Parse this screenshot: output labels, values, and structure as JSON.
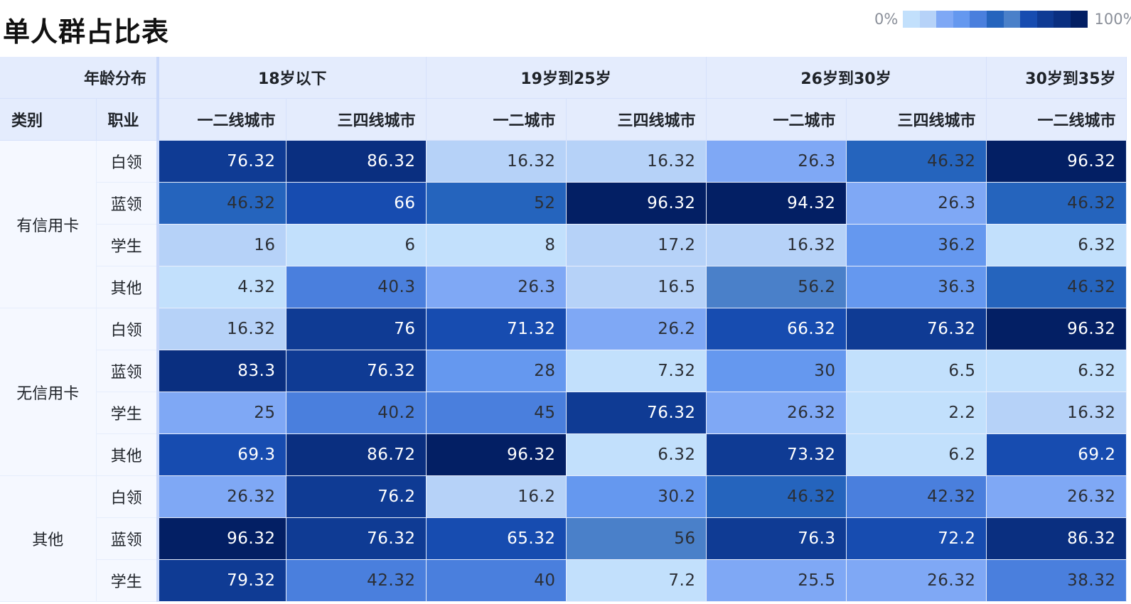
{
  "title": "单人群占比表",
  "legend": {
    "min_label": "0%",
    "max_label": "100%",
    "colors": [
      "#c2e0fc",
      "#b6d2f8",
      "#7fa8f5",
      "#6598ef",
      "#4a7fdd",
      "#2564bd",
      "#4a80c9",
      "#174cb0",
      "#0f3b94",
      "#0a2f80",
      "#031f64"
    ]
  },
  "header": {
    "age_label": "年龄分布",
    "category_label": "类别",
    "job_label": "职业",
    "age_groups": [
      "18岁以下",
      "19岁到25岁",
      "26岁到30岁",
      "30岁到35岁"
    ],
    "city_labels": [
      "一二线城市",
      "三四线城市",
      "一二城市",
      "三四线城市",
      "一二城市",
      "三四线城市",
      "一二线城市"
    ]
  },
  "chart_data": {
    "type": "heatmap",
    "title": "单人群占比表",
    "color_scale": {
      "min": 0,
      "max": 100,
      "min_label": "0%",
      "max_label": "100%"
    },
    "columns": [
      {
        "age": "18岁以下",
        "city": "一二线城市"
      },
      {
        "age": "18岁以下",
        "city": "三四线城市"
      },
      {
        "age": "19岁到25岁",
        "city": "一二城市"
      },
      {
        "age": "19岁到25岁",
        "city": "三四线城市"
      },
      {
        "age": "26岁到30岁",
        "city": "一二城市"
      },
      {
        "age": "26岁到30岁",
        "city": "三四线城市"
      },
      {
        "age": "30岁到35岁",
        "city": "一二线城市"
      }
    ],
    "groups": [
      {
        "category": "有信用卡",
        "rows": [
          {
            "job": "白领",
            "values": [
              "76.32",
              "86.32",
              "16.32",
              "16.32",
              "26.3",
              "46.32",
              "96.32"
            ]
          },
          {
            "job": "蓝领",
            "values": [
              "46.32",
              "66",
              "52",
              "96.32",
              "94.32",
              "26.3",
              "46.32"
            ]
          },
          {
            "job": "学生",
            "values": [
              "16",
              "6",
              "8",
              "17.2",
              "16.32",
              "36.2",
              "6.32"
            ]
          },
          {
            "job": "其他",
            "values": [
              "4.32",
              "40.3",
              "26.3",
              "16.5",
              "56.2",
              "36.3",
              "46.32"
            ]
          }
        ]
      },
      {
        "category": "无信用卡",
        "rows": [
          {
            "job": "白领",
            "values": [
              "16.32",
              "76",
              "71.32",
              "26.2",
              "66.32",
              "76.32",
              "96.32"
            ]
          },
          {
            "job": "蓝领",
            "values": [
              "83.3",
              "76.32",
              "28",
              "7.32",
              "30",
              "6.5",
              "6.32"
            ]
          },
          {
            "job": "学生",
            "values": [
              "25",
              "40.2",
              "45",
              "76.32",
              "26.32",
              "2.2",
              "16.32"
            ]
          },
          {
            "job": "其他",
            "values": [
              "69.3",
              "86.72",
              "96.32",
              "6.32",
              "73.32",
              "6.2",
              "69.2"
            ]
          }
        ]
      },
      {
        "category": "其他",
        "rows": [
          {
            "job": "白领",
            "values": [
              "26.32",
              "76.2",
              "16.2",
              "30.2",
              "46.32",
              "42.32",
              "26.32"
            ]
          },
          {
            "job": "蓝领",
            "values": [
              "96.32",
              "76.32",
              "65.32",
              "56",
              "76.3",
              "72.2",
              "86.32"
            ]
          },
          {
            "job": "学生",
            "values": [
              "79.32",
              "42.32",
              "40",
              "7.2",
              "25.5",
              "26.32",
              "38.32"
            ]
          }
        ]
      }
    ]
  }
}
